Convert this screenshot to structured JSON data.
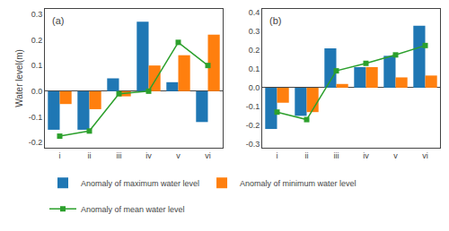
{
  "chart_data": [
    {
      "type": "bar",
      "annotations": [
        "(a)"
      ],
      "ylabel": "Water level(m)",
      "categories": [
        "i",
        "ii",
        "iii",
        "iv",
        "v",
        "vi"
      ],
      "series": [
        {
          "name": "Anomaly of maximum water level",
          "type": "bar",
          "color": "#1f77b4",
          "values": [
            -0.15,
            -0.15,
            0.05,
            0.27,
            0.035,
            -0.12
          ]
        },
        {
          "name": "Anomaly of minimum water level",
          "type": "bar",
          "color": "#ff7f0e",
          "values": [
            -0.05,
            -0.07,
            -0.02,
            0.1,
            0.14,
            0.22
          ]
        },
        {
          "name": "Anomaly of mean water level",
          "type": "line",
          "color": "#2ca02c",
          "marker": "square",
          "line_style": "solid",
          "values": [
            -0.175,
            -0.155,
            -0.01,
            0.0,
            0.19,
            0.1
          ]
        }
      ],
      "ylim": [
        -0.22,
        0.32
      ],
      "yticks": [
        -0.2,
        -0.1,
        {
          "value": 0.0,
          "label": "0.0"
        },
        0.1,
        0.2,
        0.3
      ],
      "grid": false,
      "legend": "bottom"
    },
    {
      "type": "bar",
      "annotations": [
        "(b)"
      ],
      "categories": [
        "i",
        "ii",
        "iii",
        "iv",
        "v",
        "vi"
      ],
      "series": [
        {
          "name": "Anomaly of maximum water level",
          "type": "bar",
          "color": "#1f77b4",
          "values": [
            -0.22,
            -0.15,
            0.21,
            0.11,
            0.17,
            0.33
          ]
        },
        {
          "name": "Anomaly of minimum water level",
          "type": "bar",
          "color": "#ff7f0e",
          "values": [
            -0.08,
            -0.13,
            0.02,
            0.11,
            0.055,
            0.065
          ]
        },
        {
          "name": "Anomaly of mean water level",
          "type": "line",
          "color": "#2ca02c",
          "marker": "square",
          "line_style": "solid",
          "values": [
            -0.13,
            -0.17,
            0.09,
            0.13,
            0.175,
            0.225
          ]
        }
      ],
      "ylim": [
        -0.32,
        0.42
      ],
      "yticks": [
        -0.3,
        -0.2,
        -0.1,
        {
          "value": 0.0,
          "label": "0.0"
        },
        0.1,
        0.2,
        0.3,
        0.4
      ],
      "grid": false
    }
  ]
}
